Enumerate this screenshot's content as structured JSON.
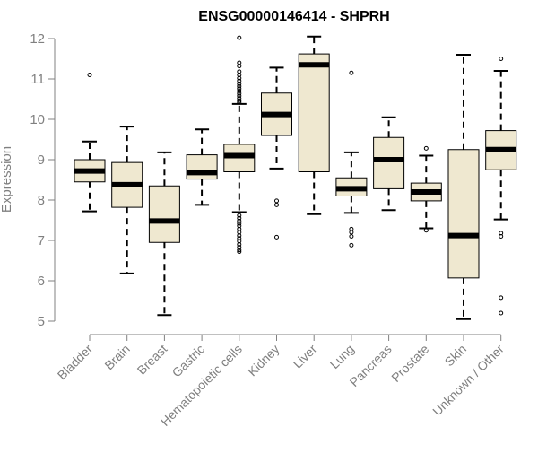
{
  "chart_data": {
    "type": "boxplot",
    "title": "ENSG00000146414 - SHPRH",
    "xlabel": "",
    "ylabel": "Expression",
    "ylim": [
      5,
      12
    ],
    "yticks": [
      5,
      6,
      7,
      8,
      9,
      10,
      11,
      12
    ],
    "categories": [
      "Bladder",
      "Brain",
      "Breast",
      "Gastric",
      "Hematopoietic cells",
      "Kidney",
      "Liver",
      "Lung",
      "Pancreas",
      "Prostate",
      "Skin",
      "Unknown / Other"
    ],
    "boxes": [
      {
        "q1": 8.45,
        "median": 8.72,
        "q3": 9.0,
        "whisker_low": 7.72,
        "whisker_high": 9.45,
        "outliers": [
          11.1
        ]
      },
      {
        "q1": 7.82,
        "median": 8.38,
        "q3": 8.93,
        "whisker_low": 6.18,
        "whisker_high": 9.82,
        "outliers": []
      },
      {
        "q1": 6.95,
        "median": 7.48,
        "q3": 8.35,
        "whisker_low": 5.15,
        "whisker_high": 9.18,
        "outliers": []
      },
      {
        "q1": 8.52,
        "median": 8.68,
        "q3": 9.12,
        "whisker_low": 7.88,
        "whisker_high": 9.75,
        "outliers": []
      },
      {
        "q1": 8.7,
        "median": 9.1,
        "q3": 9.38,
        "whisker_low": 7.7,
        "whisker_high": 10.38,
        "outliers": [
          12.02,
          11.4,
          11.32,
          11.18,
          11.1,
          11.02,
          10.95,
          10.88,
          10.82,
          10.76,
          10.7,
          10.64,
          10.58,
          10.52,
          10.46,
          10.42,
          7.62,
          7.55,
          7.48,
          7.42,
          7.36,
          7.28,
          7.2,
          7.12,
          7.05,
          6.98,
          6.9,
          6.83,
          6.76,
          6.72
        ]
      },
      {
        "q1": 9.6,
        "median": 10.12,
        "q3": 10.65,
        "whisker_low": 8.78,
        "whisker_high": 11.28,
        "outliers": [
          7.98,
          7.88,
          7.08
        ]
      },
      {
        "q1": 8.7,
        "median": 11.35,
        "q3": 11.62,
        "whisker_low": 7.65,
        "whisker_high": 12.05,
        "outliers": []
      },
      {
        "q1": 8.1,
        "median": 8.28,
        "q3": 8.55,
        "whisker_low": 7.68,
        "whisker_high": 9.18,
        "outliers": [
          11.15,
          7.28,
          7.2,
          7.1,
          6.88
        ]
      },
      {
        "q1": 8.28,
        "median": 9.0,
        "q3": 9.55,
        "whisker_low": 7.75,
        "whisker_high": 10.05,
        "outliers": []
      },
      {
        "q1": 7.98,
        "median": 8.2,
        "q3": 8.42,
        "whisker_low": 7.3,
        "whisker_high": 9.1,
        "outliers": [
          9.28,
          7.25
        ]
      },
      {
        "q1": 6.07,
        "median": 7.12,
        "q3": 9.25,
        "whisker_low": 5.05,
        "whisker_high": 11.6,
        "outliers": []
      },
      {
        "q1": 8.75,
        "median": 9.25,
        "q3": 9.72,
        "whisker_low": 7.52,
        "whisker_high": 11.2,
        "outliers": [
          11.5,
          7.18,
          7.1,
          5.58,
          5.2
        ]
      }
    ],
    "grid": false,
    "legend": "none",
    "colors": {
      "box_fill": "#efe8d0",
      "box_stroke": "#000000",
      "axis": "#808080",
      "title": "#000000"
    }
  }
}
